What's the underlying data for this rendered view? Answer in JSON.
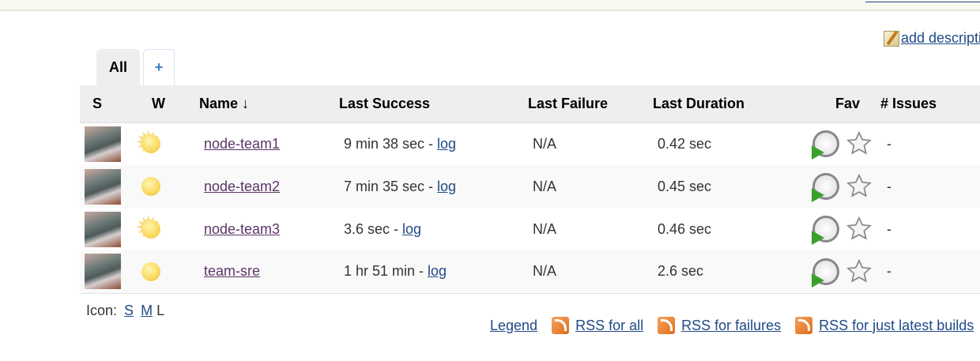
{
  "add_description": "add description",
  "tabs": [
    {
      "label": "All",
      "active": true
    },
    {
      "label": "+"
    }
  ],
  "columns": [
    "S",
    "W",
    "Name ↓",
    "Last Success",
    "Last Failure",
    "Last Duration",
    "Fav",
    "# Issues"
  ],
  "jobs": [
    {
      "name": "node-team1",
      "last_success": "9 min 38 sec - ",
      "log": "log",
      "last_failure": "N/A",
      "last_duration": "0.42 sec",
      "issues": "-"
    },
    {
      "name": "node-team2",
      "last_success": "7 min 35 sec - ",
      "log": "log",
      "last_failure": "N/A",
      "last_duration": "0.45 sec",
      "issues": "-"
    },
    {
      "name": "node-team3",
      "last_success": "3.6 sec - ",
      "log": "log",
      "last_failure": "N/A",
      "last_duration": "0.46 sec",
      "issues": "-"
    },
    {
      "name": "team-sre",
      "last_success": "1 hr 51 min - ",
      "log": "log",
      "last_failure": "N/A",
      "last_duration": "2.6 sec",
      "issues": "-"
    }
  ],
  "icon_size": {
    "label": "Icon:",
    "s": "S",
    "m": "M",
    "l": "L"
  },
  "footer_links": {
    "legend": "Legend",
    "rss_all": "RSS for all",
    "rss_failures": "RSS for failures",
    "rss_latest": "RSS for just latest builds"
  },
  "colors": {
    "link": "#204a87",
    "header_bg": "#eeeeee"
  }
}
